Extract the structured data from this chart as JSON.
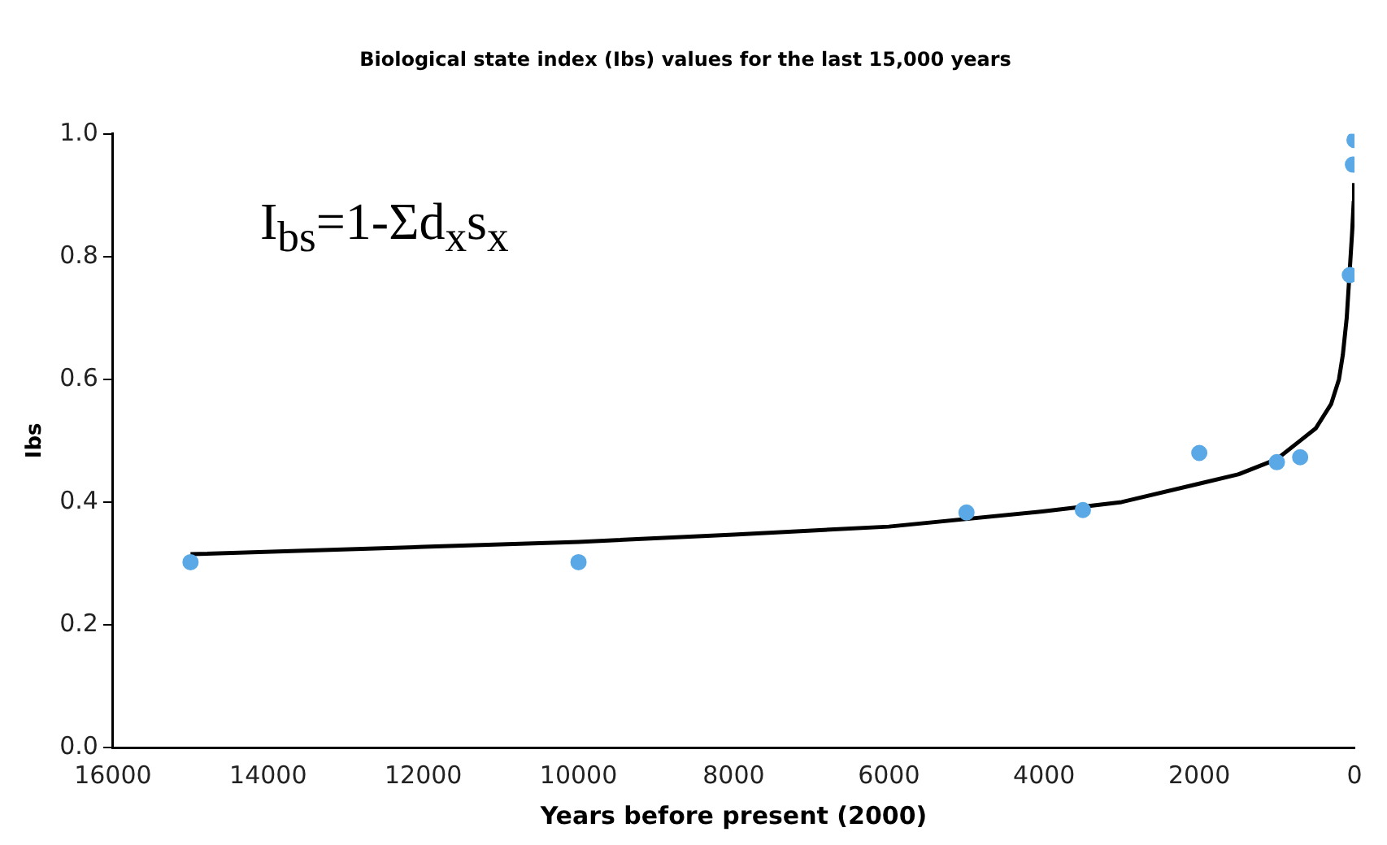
{
  "chart_data": {
    "type": "scatter",
    "title": "Biological state index (Ibs) values for the last 15,000 years",
    "xlabel": "Years before present (2000)",
    "ylabel": "Ibs",
    "annotations": [
      "I$_{bs}$=1-Σd$_{x}$s$_{x}$"
    ],
    "series": [
      {
        "type": "scatter",
        "color": "#5aa9e6",
        "marker": "circle",
        "x": [
          15000,
          10000,
          5000,
          3500,
          2000,
          1000,
          700,
          60,
          20,
          0
        ],
        "values": [
          0.302,
          0.302,
          0.383,
          0.387,
          0.48,
          0.465,
          0.473,
          0.77,
          0.95,
          0.99
        ]
      },
      {
        "type": "line",
        "color": "#000000",
        "marker": "none",
        "x": [
          15000,
          12000,
          10000,
          8000,
          6000,
          4000,
          3000,
          2000,
          1500,
          1000,
          700,
          500,
          300,
          200,
          150,
          100,
          30,
          10,
          5
        ],
        "values": [
          0.315,
          0.327,
          0.335,
          0.347,
          0.36,
          0.385,
          0.4,
          0.43,
          0.445,
          0.47,
          0.5,
          0.52,
          0.56,
          0.6,
          0.64,
          0.7,
          0.84,
          0.89,
          0.92
        ]
      }
    ],
    "xlim": [
      16000,
      0
    ],
    "xticks": [
      16000,
      14000,
      12000,
      10000,
      8000,
      6000,
      4000,
      2000,
      0
    ],
    "ylim": [
      0,
      1
    ],
    "yticks": [
      {
        "value": 0,
        "label": "0.0"
      },
      {
        "value": 0.2,
        "label": "0.2"
      },
      {
        "value": 0.4,
        "label": "0.4"
      },
      {
        "value": 0.6,
        "label": "0.6"
      },
      {
        "value": 0.8,
        "label": "0.8"
      },
      {
        "value": 1,
        "label": "1.0"
      }
    ],
    "grid": false,
    "legend": false
  }
}
